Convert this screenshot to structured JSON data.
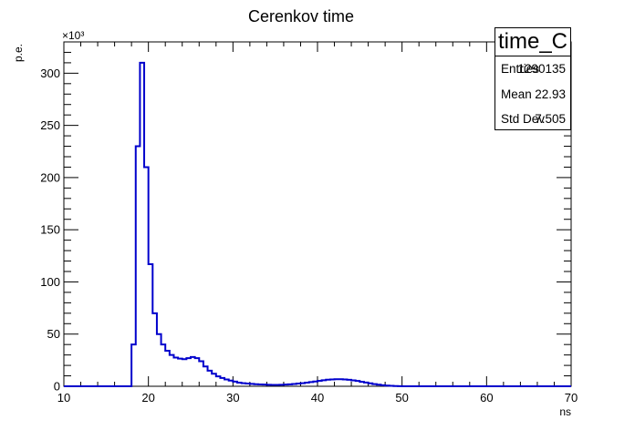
{
  "chart_data": {
    "type": "histogram",
    "title": "Cerenkov time",
    "xlabel": "ns",
    "ylabel": "p.e.",
    "y_multiplier_label": "×10³",
    "xlim": [
      10,
      70
    ],
    "ylim": [
      0,
      330
    ],
    "y_unit_scale": 1000,
    "grid": false,
    "line_color": "#0000cc",
    "x_ticks": [
      10,
      20,
      30,
      40,
      50,
      60,
      70
    ],
    "y_ticks": [
      0,
      50,
      100,
      150,
      200,
      250,
      300
    ],
    "bin_edges_start": 17.5,
    "bin_width": 0.5,
    "values": [
      0,
      40,
      230,
      310,
      210,
      117,
      70,
      50,
      40,
      34,
      30,
      27.5,
      26.5,
      26,
      27,
      28,
      27,
      24,
      19,
      15,
      12,
      9.5,
      8,
      6.5,
      5.5,
      4.5,
      3.5,
      3,
      2.6,
      2.3,
      2,
      1.8,
      1.6,
      1.4,
      1.3,
      1.3,
      1.4,
      1.6,
      1.9,
      2.2,
      2.6,
      3,
      3.5,
      4,
      4.6,
      5.2,
      5.8,
      6.3,
      6.6,
      6.8,
      6.8,
      6.6,
      6.2,
      5.7,
      5.1,
      4.3,
      3.6,
      2.8,
      2.1,
      1.5,
      1,
      0.7,
      0.4,
      0.2,
      0.1,
      0
    ]
  },
  "stats": {
    "name": "time_C",
    "rows": [
      {
        "label": "Entries",
        "value": "1290135"
      },
      {
        "label": "Mean",
        "value": "22.93"
      },
      {
        "label": "Std Dev",
        "value": "7.505"
      }
    ]
  }
}
